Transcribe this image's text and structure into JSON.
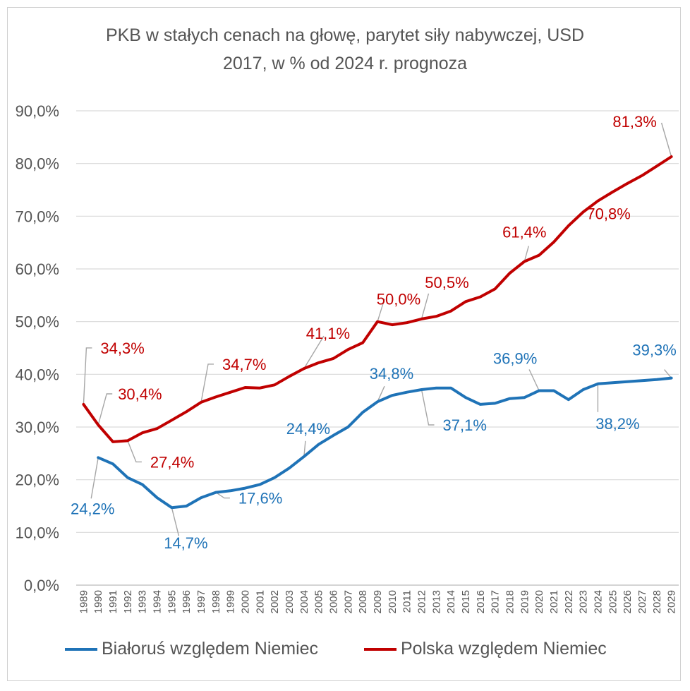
{
  "chart_data": {
    "type": "line",
    "title_lines": [
      "PKB w stałych cenach na głowę, parytet siły nabywczej, USD",
      "2017, w % od 2024 r. prognoza"
    ],
    "x": [
      "1989",
      "1990",
      "1991",
      "1992",
      "1993",
      "1994",
      "1995",
      "1996",
      "1997",
      "1998",
      "1999",
      "2000",
      "2001",
      "2002",
      "2003",
      "2004",
      "2005",
      "2006",
      "2007",
      "2008",
      "2009",
      "2010",
      "2011",
      "2012",
      "2013",
      "2014",
      "2015",
      "2016",
      "2017",
      "2018",
      "2019",
      "2020",
      "2021",
      "2022",
      "2023",
      "2024",
      "2025",
      "2026",
      "2027",
      "2028",
      "2029"
    ],
    "y_ticks": [
      "0,0%",
      "10,0%",
      "20,0%",
      "30,0%",
      "40,0%",
      "50,0%",
      "60,0%",
      "70,0%",
      "80,0%",
      "90,0%"
    ],
    "ylim": [
      0,
      90
    ],
    "grid": true,
    "legend_position": "bottom",
    "series": [
      {
        "name": "Białoruś względem Niemiec",
        "color": "#1f73b7",
        "values": [
          null,
          24.2,
          23.0,
          20.4,
          19.1,
          16.6,
          14.7,
          15.0,
          16.6,
          17.6,
          17.9,
          18.4,
          19.1,
          20.4,
          22.2,
          24.4,
          26.7,
          28.4,
          30.0,
          32.8,
          34.8,
          36.0,
          36.6,
          37.1,
          37.4,
          37.4,
          35.6,
          34.3,
          34.5,
          35.4,
          35.6,
          36.9,
          36.9,
          35.2,
          37.1,
          38.2,
          38.4,
          38.6,
          38.8,
          39.0,
          39.3
        ],
        "labels": [
          {
            "text": "24,2%",
            "x": "1990"
          },
          {
            "text": "14,7%",
            "x": "1995"
          },
          {
            "text": "17,6%",
            "x": "1998"
          },
          {
            "text": "24,4%",
            "x": "2004"
          },
          {
            "text": "34,8%",
            "x": "2009"
          },
          {
            "text": "37,1%",
            "x": "2012"
          },
          {
            "text": "36,9%",
            "x": "2020"
          },
          {
            "text": "38,2%",
            "x": "2024"
          },
          {
            "text": "39,3%",
            "x": "2029"
          }
        ]
      },
      {
        "name": "Polska względem Niemiec",
        "color": "#c00000",
        "values": [
          34.3,
          30.4,
          27.2,
          27.4,
          28.9,
          29.7,
          31.3,
          32.9,
          34.7,
          35.7,
          36.6,
          37.5,
          37.4,
          38.0,
          39.6,
          41.1,
          42.2,
          43.0,
          44.7,
          46.0,
          50.0,
          49.4,
          49.8,
          50.5,
          51.0,
          52.0,
          53.8,
          54.7,
          56.2,
          59.2,
          61.4,
          62.6,
          65.1,
          68.2,
          70.8,
          72.9,
          74.6,
          76.2,
          77.7,
          79.5,
          81.3
        ],
        "labels": [
          {
            "text": "34,3%",
            "x": "1989"
          },
          {
            "text": "30,4%",
            "x": "1990"
          },
          {
            "text": "27,4%",
            "x": "1992"
          },
          {
            "text": "34,7%",
            "x": "1997"
          },
          {
            "text": "41,1%",
            "x": "2004"
          },
          {
            "text": "50,0%",
            "x": "2009"
          },
          {
            "text": "50,5%",
            "x": "2012"
          },
          {
            "text": "61,4%",
            "x": "2019"
          },
          {
            "text": "70,8%",
            "x": "2023"
          },
          {
            "text": "81,3%",
            "x": "2029"
          }
        ]
      }
    ]
  }
}
